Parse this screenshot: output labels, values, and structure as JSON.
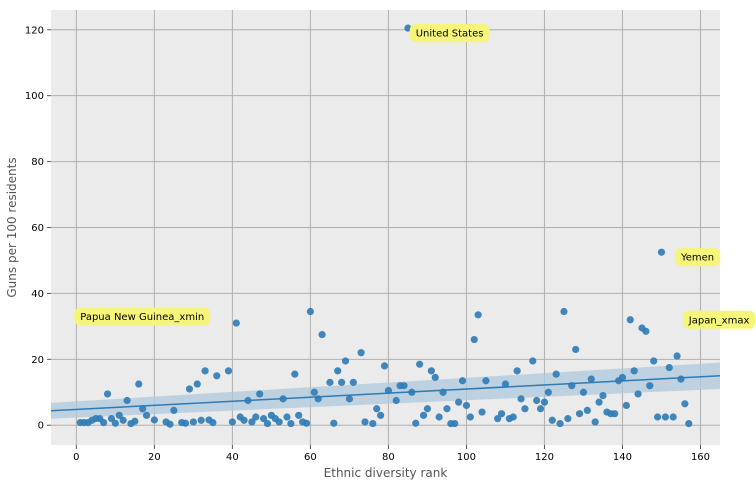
{
  "chart_data": {
    "type": "scatter",
    "title": "",
    "xlabel": "Ethnic diversity rank",
    "ylabel": "Guns per 100 residents",
    "xlim": [
      -6.5,
      165
    ],
    "ylim": [
      -6,
      126
    ],
    "xticks": [
      0,
      20,
      40,
      60,
      80,
      100,
      120,
      140,
      160
    ],
    "yticks": [
      0,
      20,
      40,
      60,
      80,
      100,
      120
    ],
    "grid": true,
    "background": "#ebebeb",
    "point_color": "#2f7bb6",
    "regression": {
      "color": "#2f7bb6",
      "band_color": "#aec8dc",
      "x": [
        -6.5,
        165
      ],
      "y": [
        4.4,
        15.0
      ],
      "band_lower": [
        2.0,
        11.0
      ],
      "band_upper": [
        6.8,
        19.0
      ]
    },
    "annotations": [
      {
        "text": "United States",
        "x": 87.0,
        "y": 119.0
      },
      {
        "text": "Yemen",
        "x": 155.0,
        "y": 51.0
      },
      {
        "text": "Papua New Guinea_xmin",
        "x": 1.0,
        "y": 33.0
      },
      {
        "text": "Japan_xmax",
        "x": 157.0,
        "y": 32.0
      }
    ],
    "annotation_color": "#f5f57a",
    "points": [
      [
        1,
        0.8
      ],
      [
        2,
        0.8
      ],
      [
        3,
        0.8
      ],
      [
        4,
        1.5
      ],
      [
        5,
        2.0
      ],
      [
        6,
        2.0
      ],
      [
        7,
        0.8
      ],
      [
        8,
        9.5
      ],
      [
        9,
        2.0
      ],
      [
        10,
        0.6
      ],
      [
        11,
        3.0
      ],
      [
        12,
        1.5
      ],
      [
        13,
        7.5
      ],
      [
        14,
        0.5
      ],
      [
        15,
        1.2
      ],
      [
        16,
        12.5
      ],
      [
        17,
        5.0
      ],
      [
        18,
        3.0
      ],
      [
        20,
        1.6
      ],
      [
        22,
        32.0
      ],
      [
        23,
        1.0
      ],
      [
        24,
        0.3
      ],
      [
        25,
        4.5
      ],
      [
        27,
        0.8
      ],
      [
        28,
        0.6
      ],
      [
        29,
        11.0
      ],
      [
        30,
        1.0
      ],
      [
        31,
        12.5
      ],
      [
        32,
        1.5
      ],
      [
        33,
        16.5
      ],
      [
        34,
        1.6
      ],
      [
        35,
        0.8
      ],
      [
        36,
        15.0
      ],
      [
        39,
        16.5
      ],
      [
        40,
        1.0
      ],
      [
        41,
        31.0
      ],
      [
        42,
        2.5
      ],
      [
        43,
        1.5
      ],
      [
        44,
        7.5
      ],
      [
        45,
        1.0
      ],
      [
        46,
        2.5
      ],
      [
        47,
        9.5
      ],
      [
        48,
        2.0
      ],
      [
        49,
        0.5
      ],
      [
        50,
        3.0
      ],
      [
        51,
        2.0
      ],
      [
        52,
        1.0
      ],
      [
        53,
        8.0
      ],
      [
        54,
        2.5
      ],
      [
        55,
        0.5
      ],
      [
        56,
        15.5
      ],
      [
        57,
        3.0
      ],
      [
        58,
        1.0
      ],
      [
        59,
        0.6
      ],
      [
        60,
        34.5
      ],
      [
        61,
        10.0
      ],
      [
        62,
        8.0
      ],
      [
        63,
        27.5
      ],
      [
        65,
        13.0
      ],
      [
        66,
        0.6
      ],
      [
        67,
        16.5
      ],
      [
        68,
        13.0
      ],
      [
        69,
        19.5
      ],
      [
        70,
        8.0
      ],
      [
        71,
        13.0
      ],
      [
        73,
        22.0
      ],
      [
        74,
        1.0
      ],
      [
        76,
        0.5
      ],
      [
        77,
        5.0
      ],
      [
        78,
        3.0
      ],
      [
        79,
        18.0
      ],
      [
        80,
        10.5
      ],
      [
        82,
        7.5
      ],
      [
        83,
        12.0
      ],
      [
        84,
        12.0
      ],
      [
        85,
        120.5
      ],
      [
        86,
        10.0
      ],
      [
        87,
        0.6
      ],
      [
        88,
        18.5
      ],
      [
        89,
        3.0
      ],
      [
        90,
        5.0
      ],
      [
        91,
        16.5
      ],
      [
        92,
        14.5
      ],
      [
        93,
        2.5
      ],
      [
        94,
        10.0
      ],
      [
        95,
        5.0
      ],
      [
        96,
        0.5
      ],
      [
        97,
        0.5
      ],
      [
        98,
        7.0
      ],
      [
        99,
        13.5
      ],
      [
        100,
        6.0
      ],
      [
        101,
        2.5
      ],
      [
        102,
        26.0
      ],
      [
        103,
        33.5
      ],
      [
        104,
        4.0
      ],
      [
        105,
        13.5
      ],
      [
        108,
        2.0
      ],
      [
        109,
        3.5
      ],
      [
        110,
        12.5
      ],
      [
        111,
        2.0
      ],
      [
        112,
        2.5
      ],
      [
        113,
        16.5
      ],
      [
        114,
        8.0
      ],
      [
        115,
        5.0
      ],
      [
        117,
        19.5
      ],
      [
        118,
        7.5
      ],
      [
        119,
        5.0
      ],
      [
        120,
        7.0
      ],
      [
        121,
        10.0
      ],
      [
        122,
        1.5
      ],
      [
        123,
        15.5
      ],
      [
        124,
        0.5
      ],
      [
        125,
        34.5
      ],
      [
        126,
        2.0
      ],
      [
        127,
        12.0
      ],
      [
        128,
        23.0
      ],
      [
        129,
        3.5
      ],
      [
        130,
        10.0
      ],
      [
        131,
        4.5
      ],
      [
        132,
        14.0
      ],
      [
        133,
        1.0
      ],
      [
        134,
        7.0
      ],
      [
        135,
        9.0
      ],
      [
        136,
        4.0
      ],
      [
        137,
        3.5
      ],
      [
        138,
        3.5
      ],
      [
        139,
        13.5
      ],
      [
        140,
        14.5
      ],
      [
        141,
        6.0
      ],
      [
        142,
        32.0
      ],
      [
        143,
        16.5
      ],
      [
        144,
        9.5
      ],
      [
        145,
        29.5
      ],
      [
        146,
        28.5
      ],
      [
        147,
        12.0
      ],
      [
        148,
        19.5
      ],
      [
        149,
        2.5
      ],
      [
        150,
        52.5
      ],
      [
        151,
        2.5
      ],
      [
        152,
        17.5
      ],
      [
        153,
        2.5
      ],
      [
        154,
        21.0
      ],
      [
        155,
        14.0
      ],
      [
        156,
        6.5
      ],
      [
        157,
        0.5
      ]
    ]
  }
}
